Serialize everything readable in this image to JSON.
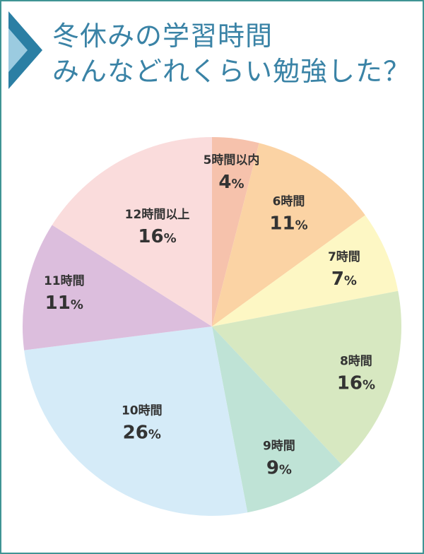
{
  "title": {
    "line1": "冬休みの学習時間",
    "line2": "みんなどれくらい勉強した？"
  },
  "colors": {
    "frame": "#3f9494",
    "title": "#3a83a6",
    "label": "#333333",
    "icon_dark": "#2b7fa4",
    "icon_light": "#9bcbe0"
  },
  "chart_data": {
    "type": "pie",
    "title": "冬休みの学習時間 みんなどれくらい勉強した？",
    "start_angle_deg": 0,
    "direction": "clockwise",
    "unit": "%",
    "slices": [
      {
        "label": "5時間以内",
        "value": 4,
        "display": "4",
        "color": "#f6c2ac"
      },
      {
        "label": "6時間",
        "value": 11,
        "display": "11",
        "color": "#fbd3a4"
      },
      {
        "label": "7時間",
        "value": 7,
        "display": "7",
        "color": "#fdf7c4"
      },
      {
        "label": "8時間",
        "value": 16,
        "display": "16",
        "color": "#d7e8c1"
      },
      {
        "label": "9時間",
        "value": 9,
        "display": "9",
        "color": "#bfe3d6"
      },
      {
        "label": "10時間",
        "value": 26,
        "display": "26",
        "color": "#d5ebf8"
      },
      {
        "label": "11時間",
        "value": 11,
        "display": "11",
        "color": "#dcbedd"
      },
      {
        "label": "12時間以上",
        "value": 16,
        "display": "16",
        "color": "#fadcdc"
      }
    ]
  }
}
